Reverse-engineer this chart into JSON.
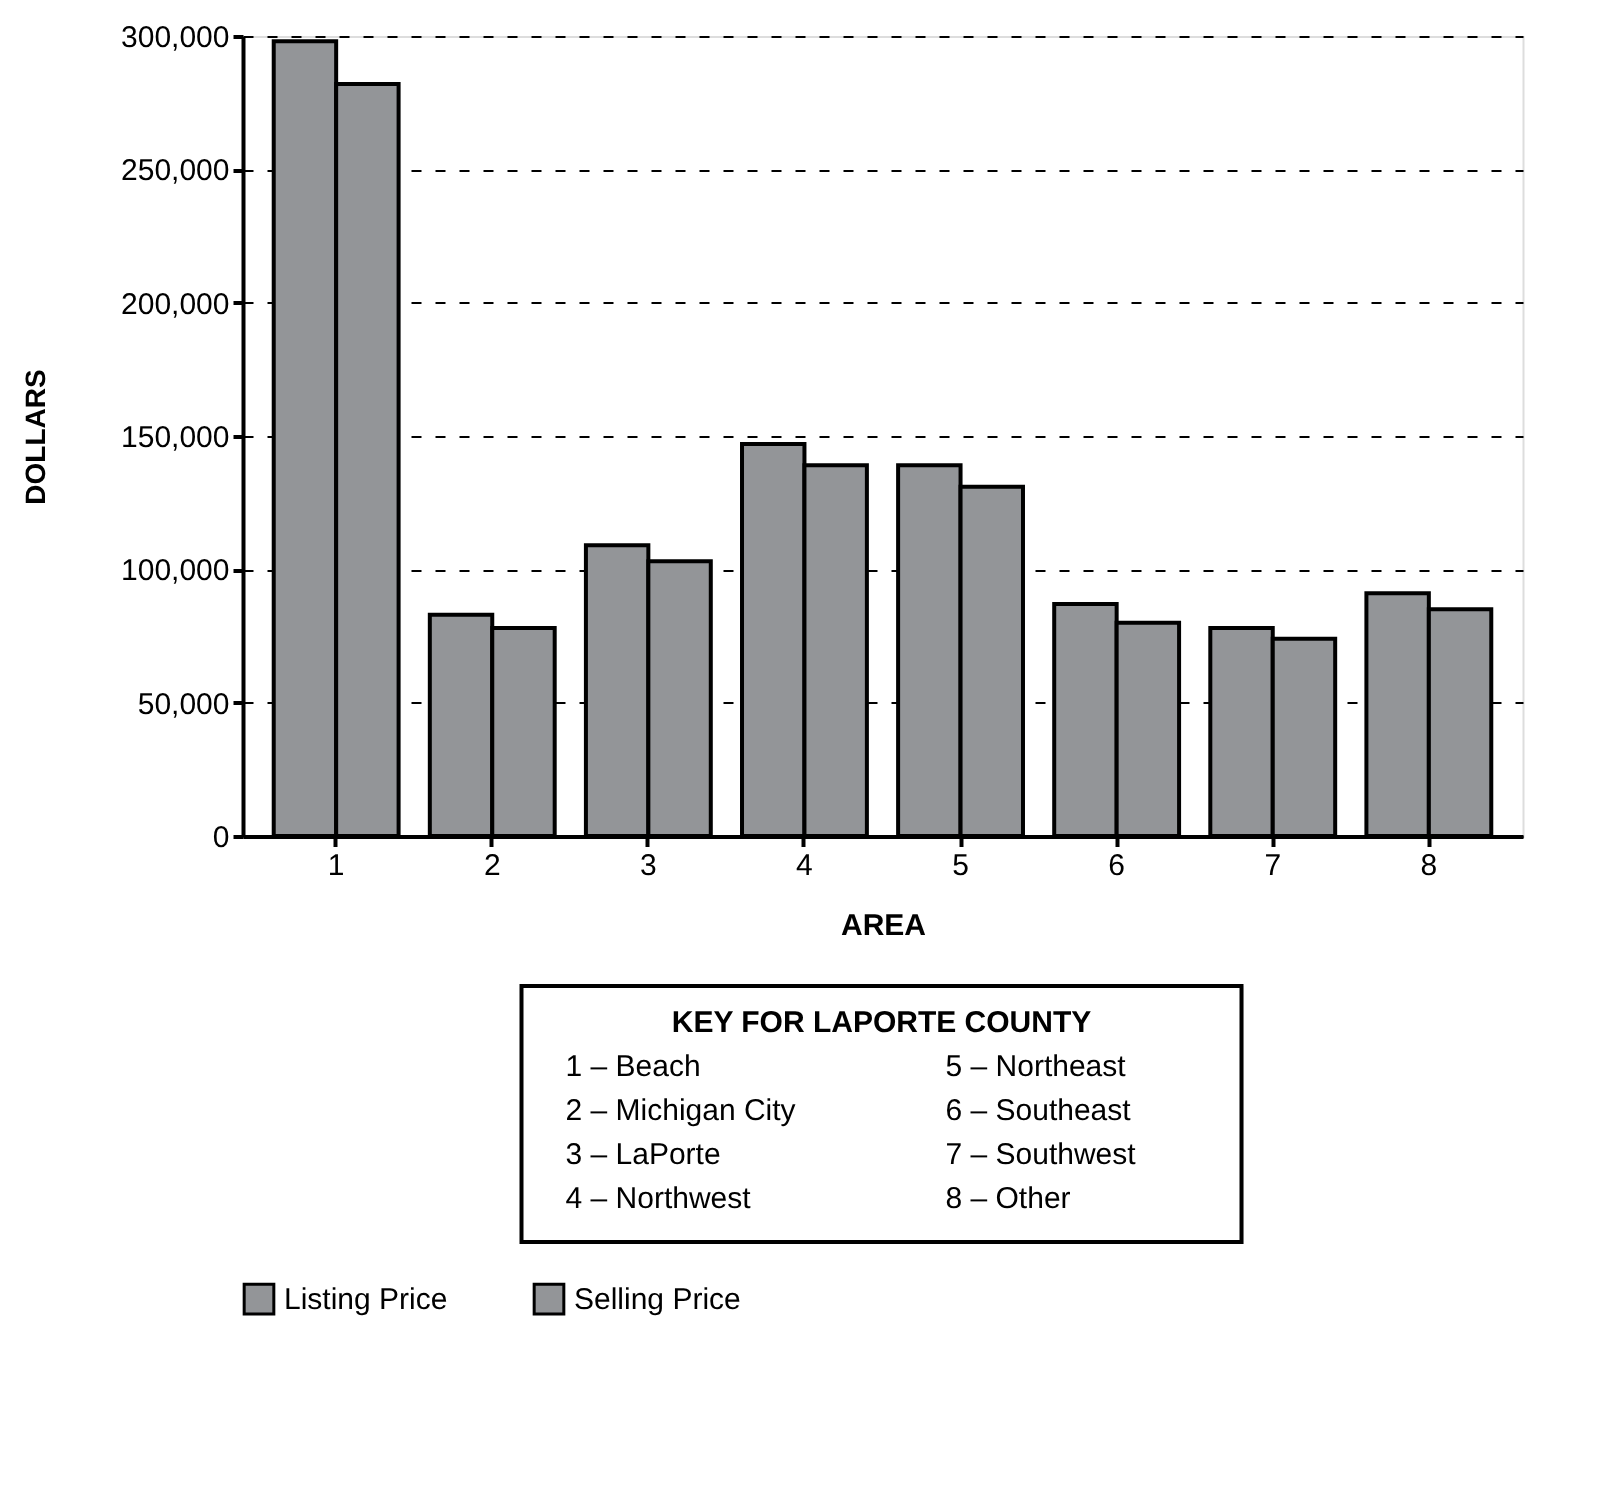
{
  "chart_data": {
    "type": "bar",
    "xlabel": "AREA",
    "ylabel": "DOLLARS",
    "categories": [
      "1",
      "2",
      "3",
      "4",
      "5",
      "6",
      "7",
      "8"
    ],
    "series": [
      {
        "name": "Listing Price",
        "color": "#939598",
        "values": [
          298000,
          83000,
          109000,
          147000,
          139000,
          87000,
          78000,
          91000
        ]
      },
      {
        "name": "Selling Price",
        "color": "#939598",
        "values": [
          282000,
          78000,
          103000,
          139000,
          131000,
          80000,
          74000,
          85000
        ]
      }
    ],
    "ylim": [
      0,
      300000
    ],
    "yticks": [
      {
        "value": 0,
        "label": "0"
      },
      {
        "value": 50000,
        "label": "50,000"
      },
      {
        "value": 100000,
        "label": "100,000"
      },
      {
        "value": 150000,
        "label": "150,000"
      },
      {
        "value": 200000,
        "label": "200,000"
      },
      {
        "value": 250000,
        "label": "250,000"
      },
      {
        "value": 300000,
        "label": "300,000"
      }
    ],
    "grid": "y",
    "legend": "bottom",
    "annotations": [
      "KEY FOR LAPORTE COUNTY",
      "1 – Beach",
      "2 – Michigan City",
      "3 – LaPorte",
      "4 – Northwest",
      "5 – Northeast",
      "6 – Southeast",
      "7 – Southwest",
      "8 – Other"
    ]
  }
}
